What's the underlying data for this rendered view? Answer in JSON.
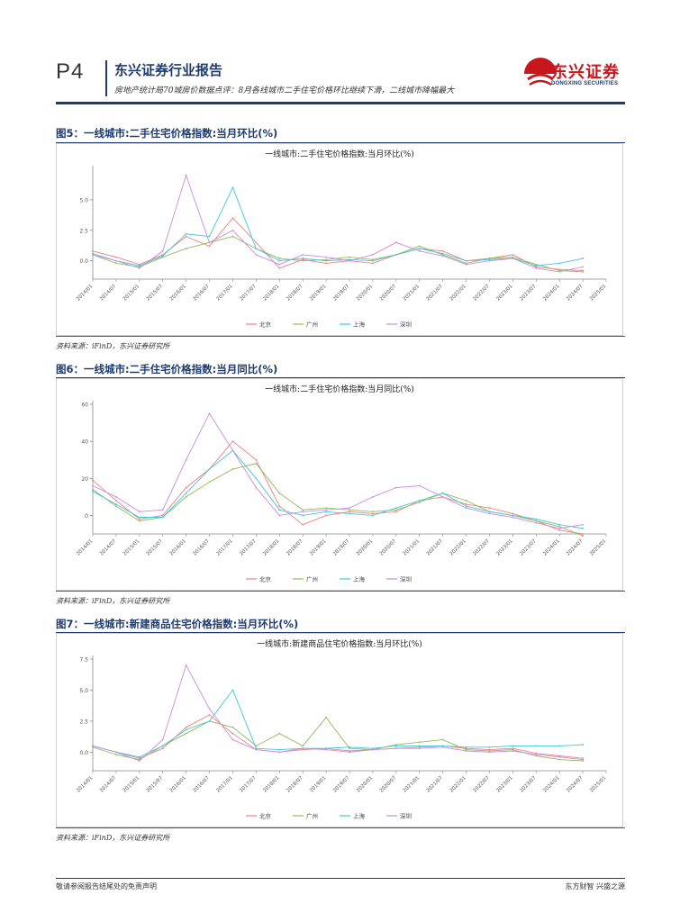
{
  "header": {
    "page_number": "P4",
    "report_title": "东兴证券行业报告",
    "subtitle": "房地产统计局70城房价数据点评：8月各线城市二手住宅价格环比继续下滑，二线城市降幅最大",
    "logo_cn": "东兴证券",
    "logo_en": "DONGXING SECURITIES",
    "brand_color": "#c8161d",
    "navy_color": "#1f3b6e"
  },
  "figures": [
    {
      "title": "图5：一线城市:二手住宅价格指数:当月环比(%)",
      "source": "资料来源：iFinD，东兴证券研究所"
    },
    {
      "title": "图6：一线城市:二手住宅价格指数:当月同比(%)",
      "source": "资料来源：iFinD，东兴证券研究所"
    },
    {
      "title": "图7：一线城市:新建商品住宅价格指数:当月环比(%)",
      "source": "资料来源：iFinD，东兴证券研究所"
    }
  ],
  "footer": {
    "left": "敬请参阅报告结尾处的免责声明",
    "right": "东方财智 兴盛之源"
  },
  "chart_data": [
    {
      "type": "line",
      "title": "一线城市:二手住宅价格指数:当月环比(%)",
      "x": [
        "2014/01",
        "2014/07",
        "2015/01",
        "2015/07",
        "2016/01",
        "2016/07",
        "2017/01",
        "2017/07",
        "2018/01",
        "2018/07",
        "2019/01",
        "2019/07",
        "2020/01",
        "2020/07",
        "2021/01",
        "2021/07",
        "2022/01",
        "2022/07",
        "2023/01",
        "2023/07",
        "2024/01",
        "2024/07",
        "2025/01"
      ],
      "ylim": [
        -1.5,
        7.5
      ],
      "yticks": [
        0.0,
        2.5,
        5.0
      ],
      "ytick_labels": [
        "0.0",
        "2.5",
        "5.0"
      ],
      "series": [
        {
          "name": "北京",
          "color": "#f08080",
          "values": [
            0.8,
            0.3,
            -0.3,
            0.5,
            2.0,
            1.2,
            3.5,
            1.5,
            -0.6,
            0.1,
            -0.2,
            0.0,
            -0.2,
            0.5,
            1.0,
            0.8,
            0.0,
            0.2,
            0.5,
            -0.5,
            -0.7,
            -0.8,
            null
          ]
        },
        {
          "name": "广州",
          "color": "#8fbc5a",
          "values": [
            0.5,
            -0.2,
            -0.5,
            0.3,
            1.0,
            1.5,
            2.0,
            1.0,
            0.2,
            0.0,
            0.1,
            0.3,
            0.1,
            0.5,
            1.2,
            0.5,
            -0.2,
            0.2,
            0.3,
            -0.3,
            -0.8,
            -0.9,
            null
          ]
        },
        {
          "name": "上海",
          "color": "#40c8d8",
          "values": [
            0.6,
            0.0,
            -0.4,
            0.4,
            2.2,
            2.0,
            6.0,
            1.0,
            0.0,
            0.2,
            0.0,
            0.1,
            0.0,
            0.5,
            1.0,
            0.6,
            0.0,
            0.1,
            0.2,
            -0.4,
            -0.2,
            0.2,
            null
          ]
        },
        {
          "name": "深圳",
          "color": "#c88ce0",
          "values": [
            0.5,
            0.0,
            -0.6,
            0.8,
            7.0,
            1.5,
            2.5,
            0.5,
            -0.3,
            0.5,
            0.3,
            0.0,
            0.5,
            1.5,
            0.8,
            0.4,
            -0.3,
            0.0,
            0.2,
            -0.6,
            -0.9,
            -0.5,
            null
          ]
        }
      ],
      "legend": [
        "北京",
        "广州",
        "上海",
        "深圳"
      ]
    },
    {
      "type": "line",
      "title": "一线城市:二手住宅价格指数:当月同比(%)",
      "x": [
        "2014/01",
        "2014/07",
        "2015/01",
        "2015/07",
        "2016/01",
        "2016/07",
        "2017/01",
        "2017/07",
        "2018/01",
        "2018/07",
        "2019/01",
        "2019/07",
        "2020/01",
        "2020/07",
        "2021/01",
        "2021/07",
        "2022/01",
        "2022/07",
        "2023/01",
        "2023/07",
        "2024/01",
        "2024/07",
        "2025/01"
      ],
      "ylim": [
        -10,
        60
      ],
      "yticks": [
        0,
        20,
        40,
        60
      ],
      "ytick_labels": [
        "0",
        "20",
        "40",
        "60"
      ],
      "series": [
        {
          "name": "北京",
          "color": "#f08080",
          "values": [
            19,
            8,
            -2,
            0,
            15,
            25,
            40,
            30,
            5,
            -5,
            0,
            2,
            1,
            2,
            8,
            10,
            6,
            4,
            1,
            -3,
            -8,
            -10,
            null
          ]
        },
        {
          "name": "广州",
          "color": "#8fbc5a",
          "values": [
            14,
            5,
            -3,
            -1,
            10,
            18,
            25,
            28,
            12,
            3,
            4,
            3,
            2,
            3,
            7,
            12,
            8,
            2,
            0,
            -3,
            -6,
            -11,
            null
          ]
        },
        {
          "name": "上海",
          "color": "#40c8d8",
          "values": [
            13,
            6,
            -1,
            -1,
            12,
            25,
            35,
            20,
            3,
            0,
            2,
            1,
            0,
            4,
            8,
            12,
            5,
            2,
            0,
            -2,
            -5,
            -7,
            null
          ]
        },
        {
          "name": "深圳",
          "color": "#c88ce0",
          "values": [
            16,
            10,
            2,
            3,
            30,
            55,
            35,
            15,
            0,
            2,
            3,
            4,
            10,
            15,
            16,
            10,
            4,
            1,
            -1,
            -4,
            -7,
            -5,
            null
          ]
        }
      ],
      "legend": [
        "北京",
        "广州",
        "上海",
        "深圳"
      ]
    },
    {
      "type": "line",
      "title": "一线城市:新建商品住宅价格指数:当月环比(%)",
      "x": [
        "2014/01",
        "2014/07",
        "2015/01",
        "2015/07",
        "2016/01",
        "2016/07",
        "2017/01",
        "2017/07",
        "2018/01",
        "2018/07",
        "2019/01",
        "2019/07",
        "2020/01",
        "2020/07",
        "2021/01",
        "2021/07",
        "2022/01",
        "2022/07",
        "2023/01",
        "2023/07",
        "2024/01",
        "2024/07",
        "2025/01"
      ],
      "ylim": [
        -1.5,
        7.5
      ],
      "yticks": [
        0.0,
        2.5,
        5.0,
        7.5
      ],
      "ytick_labels": [
        "0.0",
        "2.5",
        "5.0",
        "7.5"
      ],
      "series": [
        {
          "name": "北京",
          "color": "#f08080",
          "values": [
            0.5,
            0.0,
            -0.5,
            0.3,
            2.0,
            3.0,
            1.5,
            0.2,
            0.0,
            0.2,
            0.3,
            0.1,
            0.2,
            0.3,
            0.4,
            0.5,
            0.3,
            0.2,
            0.3,
            -0.1,
            -0.3,
            -0.5,
            null
          ]
        },
        {
          "name": "广州",
          "color": "#8fbc5a",
          "values": [
            0.4,
            -0.2,
            -0.6,
            0.5,
            1.5,
            2.5,
            2.0,
            0.5,
            1.5,
            0.5,
            2.8,
            0.3,
            0.2,
            0.6,
            0.8,
            1.0,
            0.2,
            0.1,
            0.2,
            -0.3,
            -0.6,
            -0.7,
            null
          ]
        },
        {
          "name": "上海",
          "color": "#40c8d8",
          "values": [
            0.5,
            0.0,
            -0.4,
            0.5,
            1.8,
            2.5,
            5.0,
            0.3,
            0.2,
            0.3,
            0.3,
            0.4,
            0.3,
            0.5,
            0.5,
            0.5,
            0.4,
            0.4,
            0.5,
            0.5,
            0.5,
            0.6,
            null
          ]
        },
        {
          "name": "深圳",
          "color": "#c88ce0",
          "values": [
            0.5,
            0.0,
            -0.7,
            1.0,
            7.0,
            3.5,
            1.0,
            0.2,
            0.0,
            0.3,
            0.2,
            0.0,
            0.2,
            0.3,
            0.3,
            0.4,
            0.1,
            0.0,
            0.1,
            -0.2,
            -0.4,
            -0.6,
            null
          ]
        }
      ],
      "legend": [
        "北京",
        "广州",
        "上海",
        "深圳"
      ]
    }
  ]
}
